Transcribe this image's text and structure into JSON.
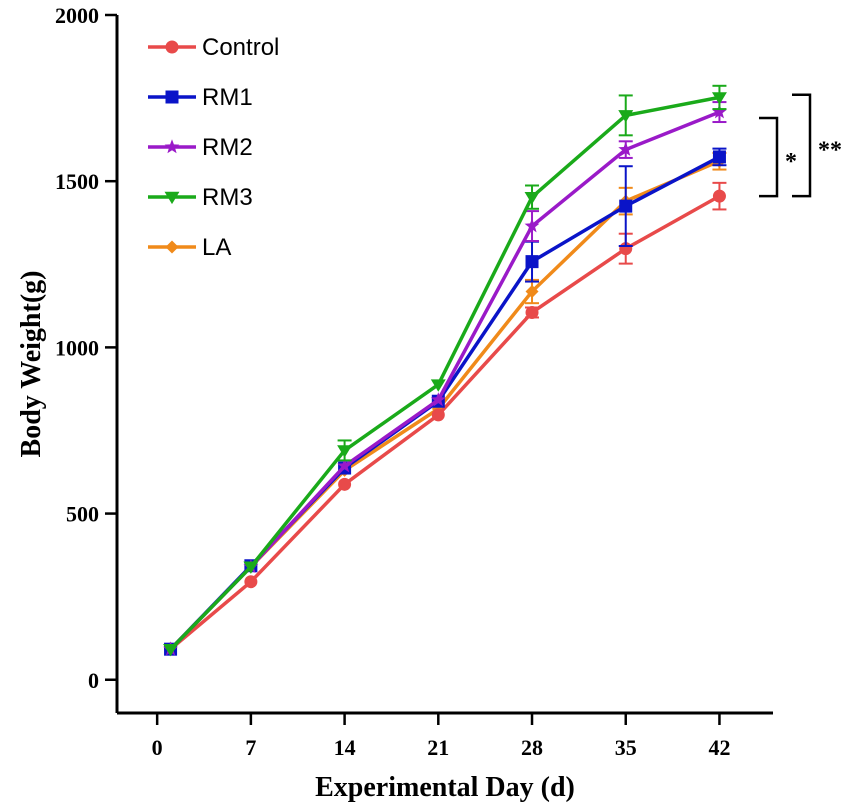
{
  "chart_data": {
    "type": "line",
    "title": "",
    "xlabel": "Experimental Day (d)",
    "ylabel": "Body Weight(g)",
    "x": [
      1,
      7,
      14,
      21,
      28,
      35,
      42
    ],
    "xticks": [
      0,
      7,
      14,
      21,
      28,
      35,
      42
    ],
    "yticks": [
      0,
      500,
      1000,
      1500,
      2000
    ],
    "xlim": [
      -3,
      46
    ],
    "ylim": [
      -100,
      2000
    ],
    "legend_position": "top-left",
    "series": [
      {
        "name": "Control",
        "color": "#e84a4a",
        "marker": "circle",
        "values": [
          92,
          295,
          588,
          797,
          1105,
          1297,
          1455
        ],
        "errors": [
          0,
          0,
          0,
          0,
          15,
          45,
          40
        ]
      },
      {
        "name": "RM1",
        "color": "#0a14c8",
        "marker": "square",
        "values": [
          92,
          343,
          637,
          838,
          1258,
          1425,
          1573
        ],
        "errors": [
          0,
          0,
          0,
          0,
          60,
          120,
          25
        ]
      },
      {
        "name": "RM2",
        "color": "#9a1ac8",
        "marker": "star",
        "values": [
          92,
          340,
          643,
          842,
          1365,
          1595,
          1708
        ],
        "errors": [
          0,
          0,
          0,
          0,
          45,
          25,
          30
        ]
      },
      {
        "name": "RM3",
        "color": "#1aaa1a",
        "marker": "triangle-down",
        "values": [
          92,
          340,
          690,
          888,
          1452,
          1698,
          1752
        ],
        "errors": [
          0,
          0,
          30,
          0,
          35,
          60,
          35
        ]
      },
      {
        "name": "LA",
        "color": "#f08a1a",
        "marker": "diamond",
        "values": [
          92,
          340,
          630,
          815,
          1168,
          1440,
          1560
        ],
        "errors": [
          0,
          0,
          0,
          0,
          35,
          40,
          25
        ]
      }
    ],
    "significance": [
      {
        "label": "*",
        "from": 1455,
        "to": 1690
      },
      {
        "label": "**",
        "from": 1455,
        "to": 1760
      }
    ]
  }
}
